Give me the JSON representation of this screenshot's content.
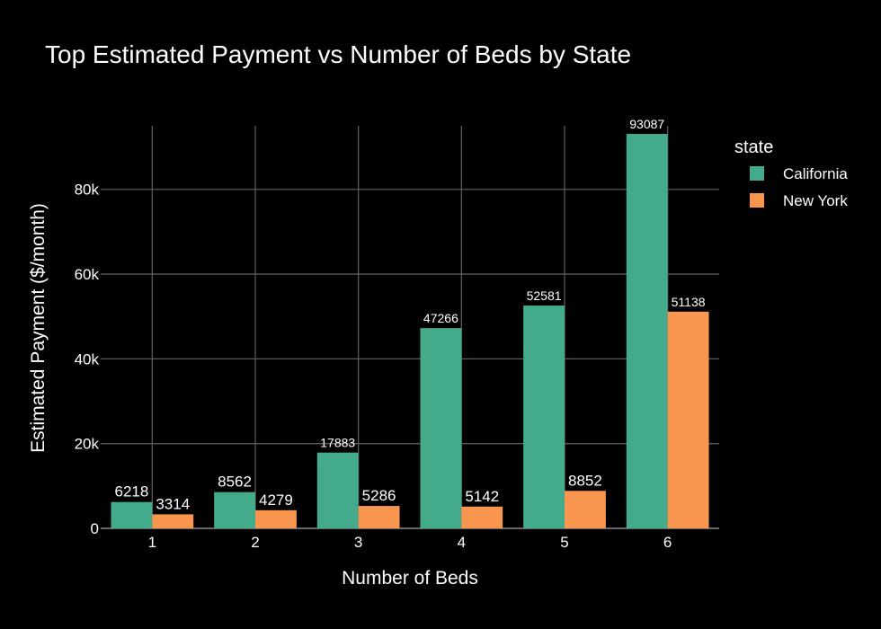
{
  "chart_data": {
    "type": "bar",
    "title": "Top Estimated Payment vs Number of Beds by State",
    "xlabel": "Number of Beds",
    "ylabel": "Estimated Payment ($/month)",
    "categories": [
      "1",
      "2",
      "3",
      "4",
      "5",
      "6"
    ],
    "series": [
      {
        "name": "California",
        "color": "#43aa8b",
        "values": [
          6218,
          8562,
          17883,
          47266,
          52581,
          93087
        ]
      },
      {
        "name": "New York",
        "color": "#f8964f",
        "values": [
          3314,
          4279,
          5286,
          5142,
          8852,
          51138
        ]
      }
    ],
    "ylim": [
      0,
      95000
    ],
    "yticks": [
      0,
      20000,
      40000,
      60000,
      80000
    ],
    "ytick_labels": [
      "0",
      "20k",
      "40k",
      "60k",
      "80k"
    ],
    "legend_title": "state",
    "legend_position": "top-right",
    "grid": true,
    "background": "#000000"
  }
}
